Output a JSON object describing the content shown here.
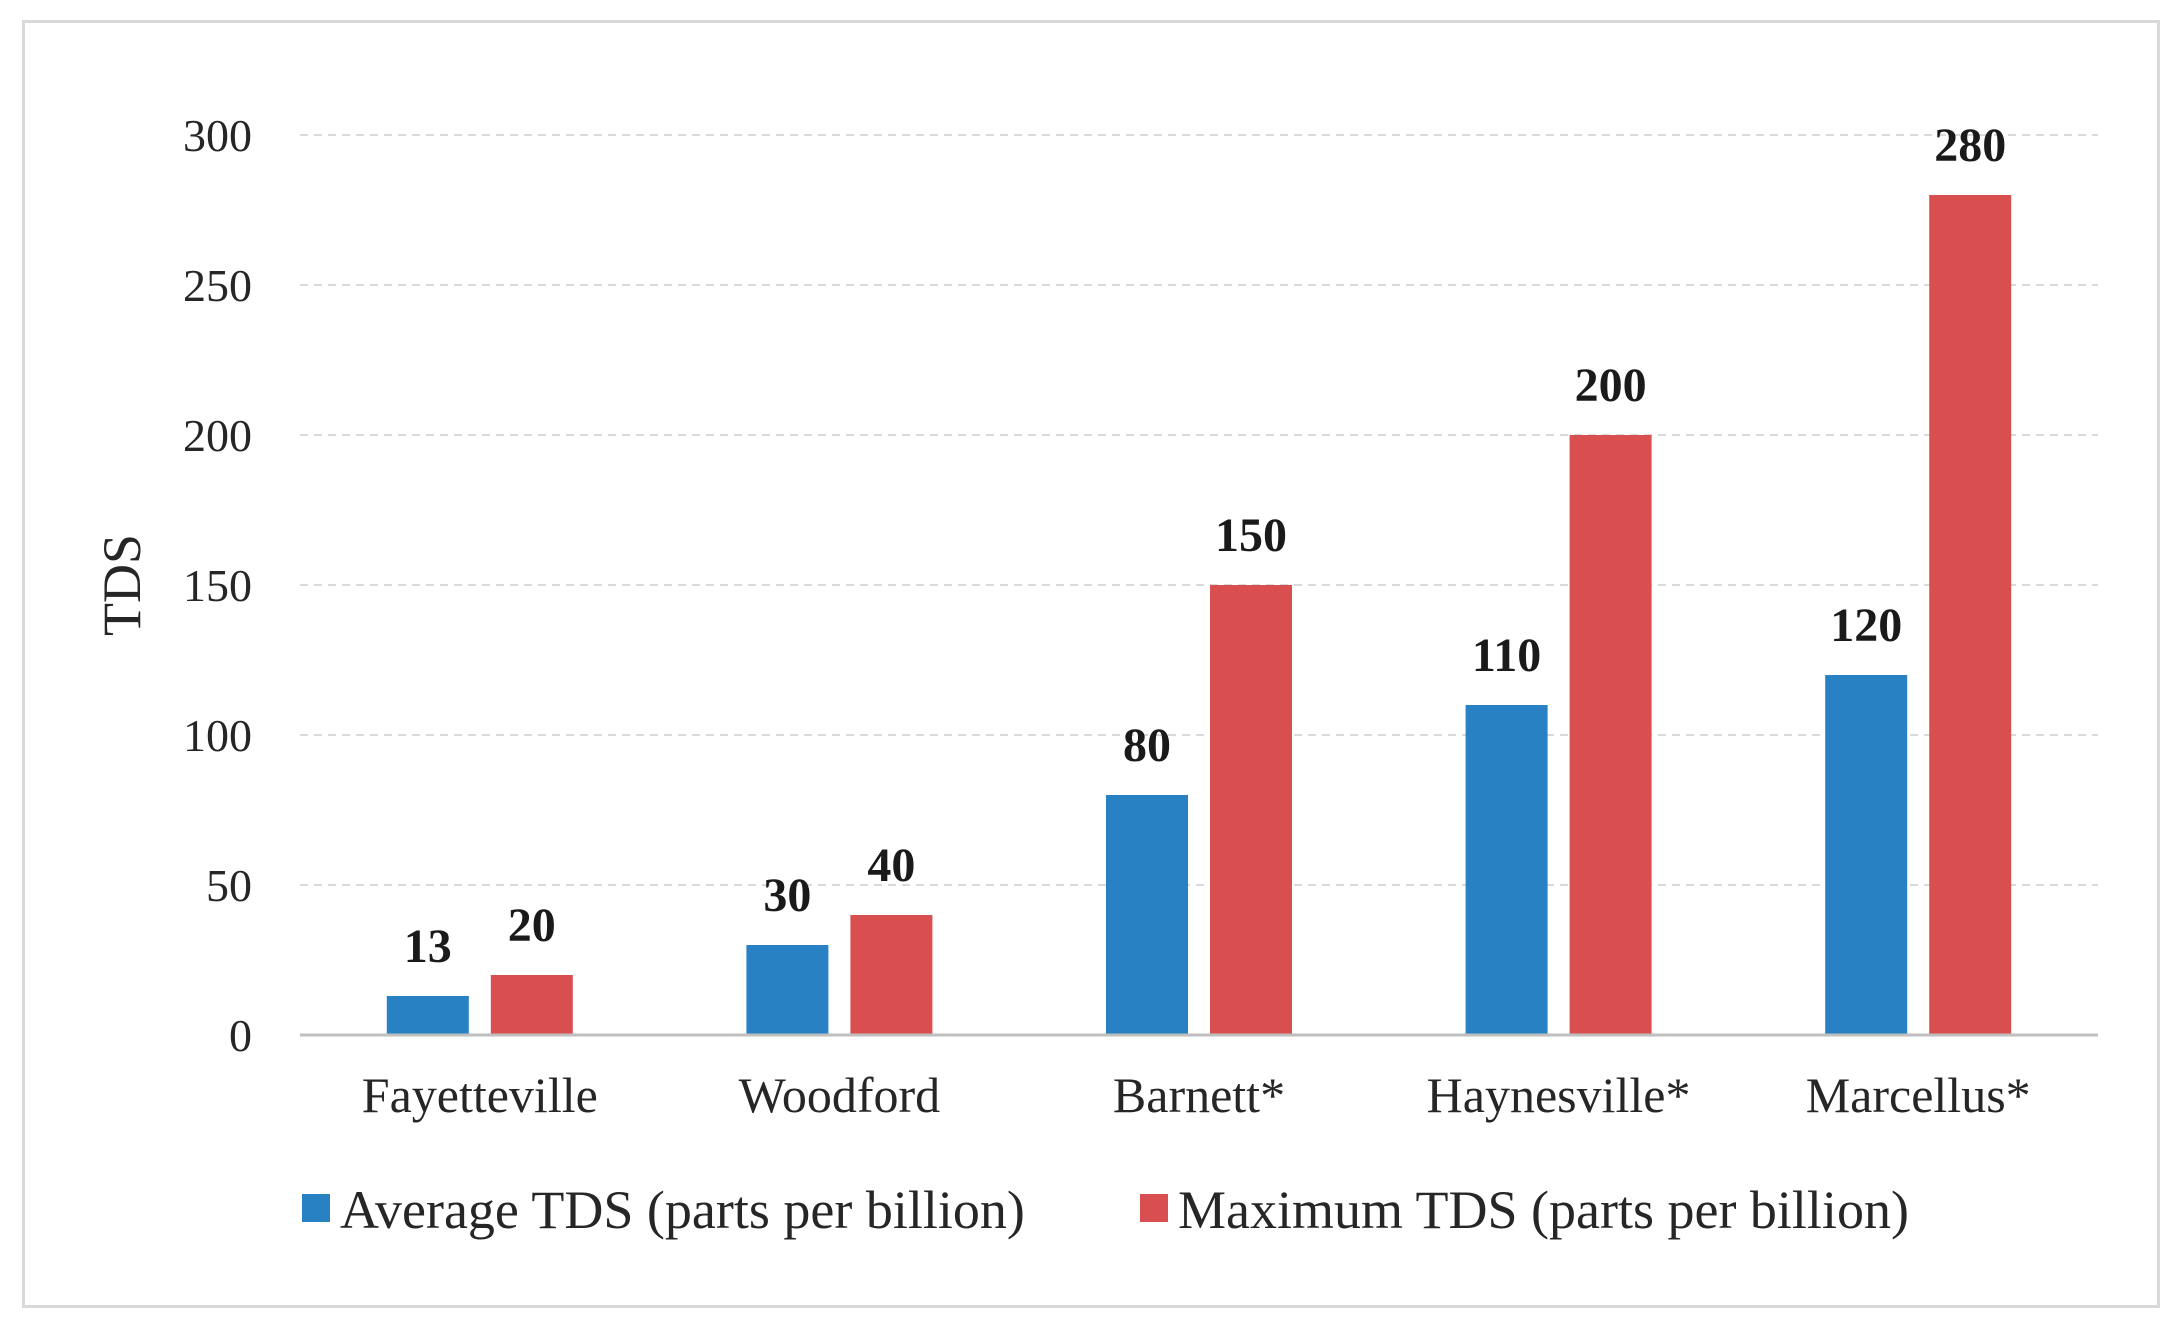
{
  "chart_data": {
    "type": "bar",
    "title": "",
    "xlabel": "",
    "ylabel": "TDS",
    "ylim": [
      0,
      300
    ],
    "yticks": [
      0,
      50,
      100,
      150,
      200,
      250,
      300
    ],
    "grid": true,
    "legend_position": "bottom",
    "categories": [
      "Fayetteville",
      "Woodford",
      "Barnett*",
      "Haynesville*",
      "Marcellus*"
    ],
    "series": [
      {
        "name": "Average TDS (parts per billion)",
        "color": "#2781c2",
        "values": [
          13,
          30,
          80,
          110,
          120
        ]
      },
      {
        "name": "Maximum TDS (parts per billion)",
        "color": "#d94f4f",
        "values": [
          20,
          40,
          150,
          200,
          280
        ]
      }
    ]
  }
}
